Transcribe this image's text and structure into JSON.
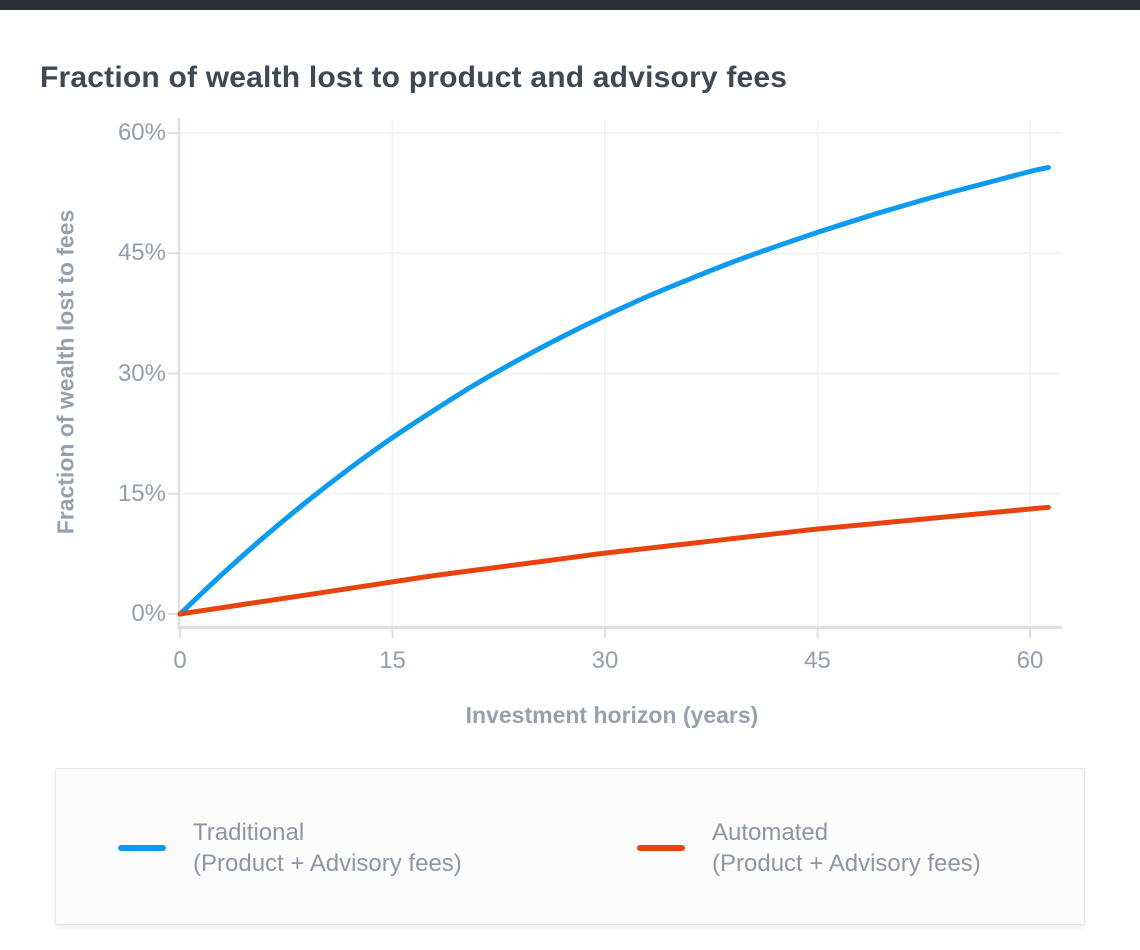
{
  "page": {
    "title": "Fraction of wealth lost to product and advisory fees"
  },
  "colors": {
    "top_bar": "#2c3136",
    "title_text": "#3d4954",
    "axis_title_text": "#97a1ae",
    "tick_text": "#949ead",
    "legend_text": "#8c96a4",
    "gridline": "#f3f4f6",
    "axis_line": "#dde1e6",
    "legend_background": "#fcfcfd",
    "legend_border": "#e6e8ec",
    "traditional_blue": "#0d9bf0",
    "automated_red": "#e8430f"
  },
  "chart_data": {
    "type": "line",
    "title": "Fraction of wealth lost to product and advisory fees",
    "xlabel": "Investment horizon (years)",
    "ylabel": "Fraction of wealth lost to fees",
    "units": "percent of wealth",
    "xlim": [
      0,
      61.3
    ],
    "ylim": [
      0,
      60
    ],
    "grid": true,
    "legend_position": "bottom",
    "x_ticks": [
      {
        "value": 0,
        "label": "0"
      },
      {
        "value": 15,
        "label": "15"
      },
      {
        "value": 30,
        "label": "30"
      },
      {
        "value": 45,
        "label": "45"
      },
      {
        "value": 60,
        "label": "60"
      }
    ],
    "y_ticks": [
      {
        "value": 0,
        "label": "0%"
      },
      {
        "value": 15,
        "label": "15%"
      },
      {
        "value": 30,
        "label": "30%"
      },
      {
        "value": 45,
        "label": "45%"
      },
      {
        "value": 60,
        "label": "60%"
      }
    ],
    "x": [
      0,
      3,
      6,
      9,
      12,
      15,
      18,
      21,
      24,
      27,
      30,
      33,
      36,
      39,
      42,
      45,
      48,
      51,
      54,
      57,
      60,
      61.3
    ],
    "series": [
      {
        "name": "Traditional",
        "sublabel": "(Product + Advisory fees)",
        "color": "#0d9bf0",
        "values": [
          0,
          5.0,
          9.7,
          14.1,
          18.2,
          22.0,
          25.5,
          28.8,
          31.8,
          34.6,
          37.2,
          39.6,
          41.8,
          43.9,
          45.8,
          47.6,
          49.3,
          50.9,
          52.4,
          53.8,
          55.2,
          55.7
        ]
      },
      {
        "name": "Automated",
        "sublabel": "(Product + Advisory fees)",
        "color": "#e8430f",
        "values": [
          0,
          0.8,
          1.6,
          2.4,
          3.2,
          4.0,
          4.8,
          5.5,
          6.2,
          6.9,
          7.6,
          8.2,
          8.8,
          9.4,
          10.0,
          10.6,
          11.1,
          11.6,
          12.1,
          12.6,
          13.1,
          13.3
        ]
      }
    ]
  }
}
